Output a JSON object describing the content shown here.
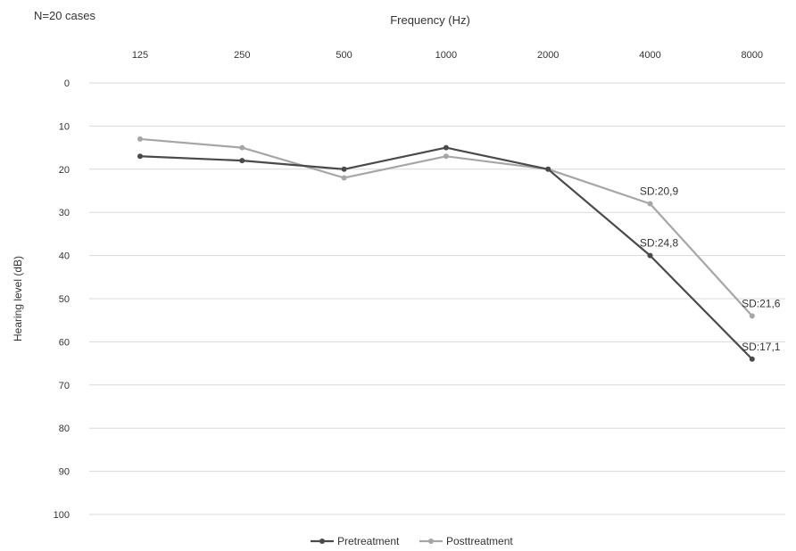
{
  "chart_data": {
    "type": "line",
    "note": "N=20 cases",
    "xlabel": "Frequency (Hz)",
    "ylabel": "Hearing level (dB)",
    "categories": [
      "125",
      "250",
      "500",
      "1000",
      "2000",
      "4000",
      "8000"
    ],
    "yticks": [
      0,
      10,
      20,
      30,
      40,
      50,
      60,
      70,
      80,
      90,
      100
    ],
    "ylim": [
      0,
      100
    ],
    "y_inverted": true,
    "x_axis_position": "top",
    "grid": true,
    "legend_position": "bottom",
    "series": [
      {
        "name": "Pretreatment",
        "color": "#4a4a4a",
        "values": [
          17,
          18,
          20,
          15,
          20,
          40,
          64
        ]
      },
      {
        "name": "Posttreatment",
        "color": "#a6a6a6",
        "values": [
          13,
          15,
          22,
          17,
          20,
          28,
          54
        ]
      }
    ],
    "annotations": [
      {
        "text": "SD:20,9",
        "category": "4000",
        "series": "Posttreatment"
      },
      {
        "text": "SD:24,8",
        "category": "4000",
        "series": "Pretreatment"
      },
      {
        "text": "SD:21,6",
        "category": "8000",
        "series": "Posttreatment"
      },
      {
        "text": "SD:17,1",
        "category": "8000",
        "series": "Pretreatment"
      }
    ]
  }
}
